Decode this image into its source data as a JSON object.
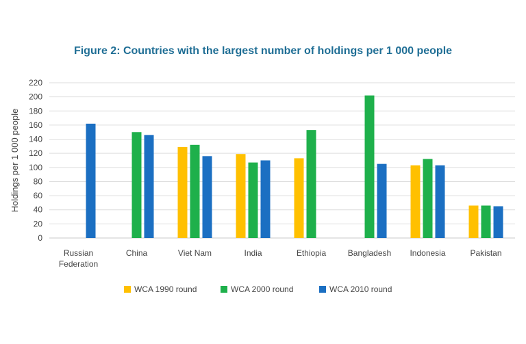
{
  "chart_data": {
    "type": "bar",
    "title": "Figure 2: Countries with the largest number of holdings per 1 000 people",
    "xlabel": "",
    "ylabel": "Holdings per 1 000 people",
    "ylim": [
      0,
      220
    ],
    "yticks": [
      0,
      20,
      40,
      60,
      80,
      100,
      120,
      140,
      160,
      180,
      200,
      220
    ],
    "grid": true,
    "legend_position": "bottom",
    "categories": [
      [
        "Russian",
        "Federation"
      ],
      [
        "China"
      ],
      [
        "Viet Nam"
      ],
      [
        "India"
      ],
      [
        "Ethiopia"
      ],
      [
        "Bangladesh"
      ],
      [
        "Indonesia"
      ],
      [
        "Pakistan"
      ]
    ],
    "series": [
      {
        "name": "WCA 1990 round",
        "color": "#FFC000",
        "values": [
          null,
          null,
          129,
          119,
          113,
          null,
          103,
          46
        ]
      },
      {
        "name": "WCA 2000 round",
        "color": "#1EB04B",
        "values": [
          null,
          150,
          132,
          107,
          153,
          202,
          112,
          46
        ]
      },
      {
        "name": "WCA 2010 round",
        "color": "#1B6FC2",
        "values": [
          162,
          146,
          116,
          110,
          null,
          105,
          103,
          45
        ]
      }
    ]
  }
}
